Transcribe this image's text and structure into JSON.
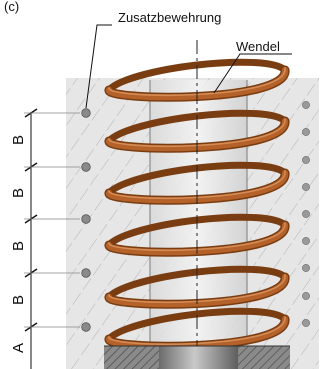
{
  "labels": {
    "top_left": "(c)",
    "reinforcement": "Zusatzbewehrung",
    "spiral": "Wendel"
  },
  "dimensions": [
    {
      "label": "B"
    },
    {
      "label": "B"
    },
    {
      "label": "B"
    },
    {
      "label": "B"
    },
    {
      "label": "A"
    }
  ],
  "colors": {
    "concrete": "#e6e6e6",
    "hatch": "#a9a9a9",
    "spiral_dark": "#7a3d12",
    "spiral_mid": "#b4622a",
    "spiral_light": "#d48b55",
    "bar": "#8a8a8a",
    "plate": "#777777"
  }
}
